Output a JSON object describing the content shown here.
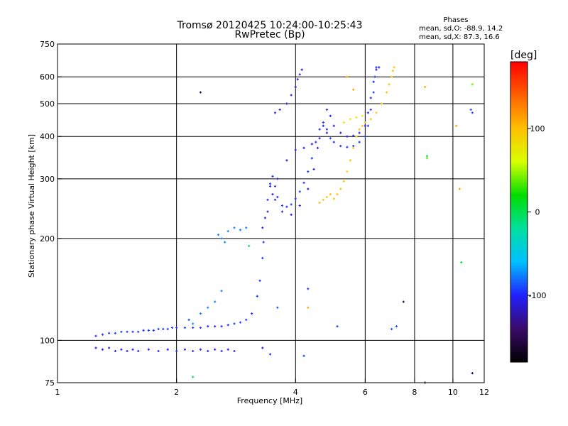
{
  "chart_data": {
    "type": "scatter",
    "title": "Tromsø 20120425 10:24:00-10:25:43",
    "subtitle": "RwPretec (Bp)",
    "xlabel": "Frequency [MHz]",
    "ylabel": "Stationary phase Virtual Height [km]",
    "x_scale": "log",
    "y_scale": "log",
    "xlim": [
      1,
      12
    ],
    "ylim": [
      75,
      750
    ],
    "x_ticks": [
      1,
      2,
      4,
      6,
      8,
      10,
      12
    ],
    "y_ticks": [
      75,
      100,
      200,
      300,
      400,
      500,
      600,
      750
    ],
    "x_grid": [
      2,
      4,
      6,
      8,
      10
    ],
    "y_grid": [
      100,
      200,
      300,
      400,
      500,
      600
    ],
    "phases": {
      "title": "Phases",
      "line_o": "mean, sd,O: -88.9, 14.2",
      "line_x": "mean, sd,X:  87.3, 16.6"
    },
    "colorbar": {
      "label": "[deg]",
      "range": [
        -180,
        180
      ],
      "ticks": [
        100,
        0,
        -100
      ],
      "colors": [
        "#000000",
        "#3a0a6a",
        "#2020ff",
        "#00c0ff",
        "#00e0a0",
        "#00dd00",
        "#d8ff00",
        "#ffc000",
        "#ff6000",
        "#ff0000"
      ]
    },
    "series": [
      {
        "phase": -95,
        "points": [
          [
            1.25,
            103
          ],
          [
            1.3,
            104
          ],
          [
            1.35,
            105
          ],
          [
            1.4,
            105
          ],
          [
            1.45,
            106
          ],
          [
            1.5,
            106
          ],
          [
            1.55,
            106
          ],
          [
            1.6,
            106
          ],
          [
            1.65,
            107
          ],
          [
            1.7,
            107
          ],
          [
            1.75,
            107
          ],
          [
            1.8,
            108
          ],
          [
            1.85,
            108
          ],
          [
            1.9,
            108
          ],
          [
            1.95,
            109
          ],
          [
            2.0,
            109
          ],
          [
            2.1,
            109
          ],
          [
            2.2,
            109
          ],
          [
            2.3,
            109
          ],
          [
            2.4,
            110
          ],
          [
            2.5,
            110
          ],
          [
            2.6,
            110
          ],
          [
            2.7,
            111
          ],
          [
            2.8,
            112
          ],
          [
            2.9,
            113
          ],
          [
            3.0,
            115
          ],
          [
            3.1,
            120
          ],
          [
            3.2,
            135
          ],
          [
            3.25,
            150
          ],
          [
            3.3,
            175
          ],
          [
            3.32,
            195
          ],
          [
            3.35,
            230
          ],
          [
            3.4,
            260
          ],
          [
            3.45,
            290
          ],
          [
            3.5,
            305
          ],
          [
            3.55,
            285
          ],
          [
            3.6,
            265
          ],
          [
            3.7,
            250
          ],
          [
            3.8,
            248
          ],
          [
            3.9,
            252
          ],
          [
            4.0,
            262
          ],
          [
            4.1,
            275
          ],
          [
            4.2,
            292
          ],
          [
            4.3,
            315
          ],
          [
            4.4,
            345
          ],
          [
            4.5,
            385
          ],
          [
            4.6,
            420
          ],
          [
            4.7,
            440
          ],
          [
            4.8,
            420
          ],
          [
            4.9,
            395
          ],
          [
            5.0,
            385
          ],
          [
            5.2,
            375
          ],
          [
            5.4,
            372
          ],
          [
            5.6,
            375
          ],
          [
            5.8,
            385
          ],
          [
            6.0,
            400
          ],
          [
            6.1,
            430
          ],
          [
            6.2,
            480
          ],
          [
            6.3,
            540
          ],
          [
            6.35,
            600
          ],
          [
            6.4,
            640
          ]
        ]
      },
      {
        "phase": -100,
        "points": [
          [
            1.25,
            95
          ],
          [
            1.3,
            94
          ],
          [
            1.35,
            95
          ],
          [
            1.4,
            93
          ],
          [
            1.45,
            94
          ],
          [
            1.5,
            93
          ],
          [
            1.55,
            94
          ],
          [
            1.6,
            93
          ],
          [
            1.7,
            94
          ],
          [
            1.8,
            93
          ],
          [
            1.9,
            94
          ],
          [
            2.0,
            93
          ],
          [
            2.1,
            94
          ],
          [
            2.2,
            93
          ],
          [
            2.3,
            94
          ],
          [
            2.4,
            93
          ],
          [
            2.5,
            94
          ],
          [
            2.6,
            93
          ],
          [
            2.7,
            94
          ],
          [
            2.8,
            93
          ],
          [
            3.3,
            95
          ],
          [
            3.45,
            91
          ]
        ]
      },
      {
        "phase": -102,
        "points": [
          [
            3.45,
            285
          ],
          [
            3.55,
            260
          ],
          [
            3.7,
            240
          ],
          [
            3.9,
            235
          ],
          [
            4.1,
            250
          ],
          [
            4.3,
            280
          ],
          [
            4.45,
            320
          ],
          [
            4.55,
            370
          ],
          [
            4.7,
            430
          ],
          [
            4.8,
            480
          ],
          [
            4.9,
            460
          ],
          [
            5.0,
            430
          ],
          [
            5.2,
            410
          ],
          [
            5.4,
            400
          ],
          [
            5.6,
            402
          ],
          [
            5.8,
            410
          ],
          [
            6.0,
            430
          ],
          [
            6.1,
            470
          ],
          [
            6.2,
            520
          ],
          [
            6.3,
            580
          ],
          [
            6.4,
            630
          ],
          [
            6.5,
            640
          ]
        ]
      },
      {
        "phase": -108,
        "points": [
          [
            3.3,
            215
          ],
          [
            3.4,
            240
          ],
          [
            3.5,
            270
          ],
          [
            3.6,
            300
          ],
          [
            3.8,
            340
          ],
          [
            4.0,
            365
          ],
          [
            4.2,
            370
          ],
          [
            4.4,
            380
          ],
          [
            4.6,
            395
          ],
          [
            4.8,
            410
          ],
          [
            3.55,
            470
          ],
          [
            3.65,
            480
          ],
          [
            3.8,
            500
          ],
          [
            3.9,
            530
          ],
          [
            4.0,
            560
          ],
          [
            4.05,
            590
          ],
          [
            4.1,
            610
          ],
          [
            4.15,
            630
          ]
        ]
      },
      {
        "phase": -75,
        "points": [
          [
            2.55,
            205
          ],
          [
            2.6,
            200
          ],
          [
            2.65,
            195
          ],
          [
            2.7,
            210
          ],
          [
            2.8,
            215
          ],
          [
            2.9,
            212
          ],
          [
            3.0,
            215
          ],
          [
            2.3,
            120
          ],
          [
            2.4,
            125
          ],
          [
            2.5,
            130
          ],
          [
            2.6,
            140
          ],
          [
            2.2,
            112
          ]
        ]
      },
      {
        "phase": 95,
        "points": [
          [
            5.0,
            262
          ],
          [
            5.1,
            270
          ],
          [
            5.2,
            280
          ],
          [
            5.3,
            295
          ],
          [
            5.4,
            315
          ],
          [
            5.5,
            340
          ],
          [
            5.6,
            370
          ],
          [
            5.7,
            400
          ],
          [
            5.8,
            420
          ],
          [
            5.9,
            430
          ],
          [
            6.0,
            440
          ],
          [
            6.2,
            450
          ],
          [
            6.4,
            470
          ],
          [
            6.6,
            500
          ],
          [
            6.8,
            540
          ],
          [
            6.9,
            570
          ],
          [
            7.0,
            600
          ],
          [
            7.05,
            625
          ],
          [
            7.1,
            640
          ],
          [
            4.6,
            255
          ],
          [
            4.7,
            260
          ],
          [
            4.8,
            265
          ],
          [
            4.9,
            270
          ]
        ]
      },
      {
        "phase": 70,
        "points": [
          [
            5.3,
            440
          ],
          [
            5.5,
            450
          ],
          [
            5.7,
            455
          ],
          [
            5.9,
            460
          ]
        ]
      },
      {
        "phase": -150,
        "points": [
          [
            2.3,
            540
          ],
          [
            7.5,
            130
          ],
          [
            8.5,
            75
          ],
          [
            11.2,
            80
          ]
        ]
      },
      {
        "phase": 0,
        "points": [
          [
            2.2,
            78
          ],
          [
            3.05,
            190
          ],
          [
            8.6,
            350
          ],
          [
            10.5,
            170
          ]
        ]
      },
      {
        "phase": 110,
        "points": [
          [
            5.4,
            600
          ],
          [
            5.6,
            550
          ],
          [
            8.5,
            560
          ],
          [
            10.2,
            430
          ],
          [
            10.4,
            280
          ],
          [
            4.3,
            125
          ]
        ]
      },
      {
        "phase": -90,
        "points": [
          [
            2.15,
            115
          ],
          [
            3.6,
            125
          ],
          [
            4.3,
            142
          ],
          [
            4.2,
            90
          ],
          [
            5.1,
            110
          ],
          [
            7.0,
            108
          ],
          [
            7.2,
            110
          ],
          [
            11.1,
            480
          ],
          [
            11.2,
            470
          ]
        ]
      },
      {
        "phase": 40,
        "points": [
          [
            11.2,
            570
          ],
          [
            8.6,
            345
          ]
        ]
      }
    ]
  }
}
